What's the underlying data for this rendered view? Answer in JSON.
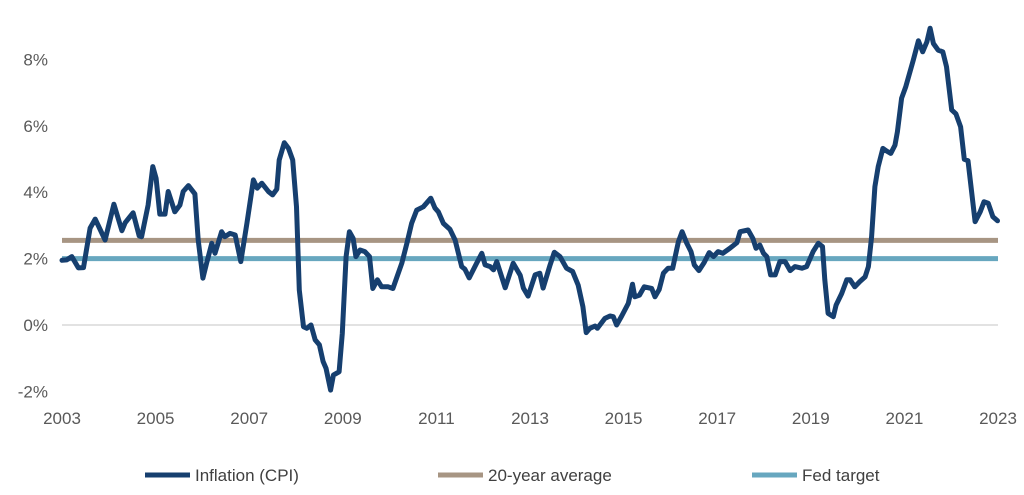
{
  "chart_data": {
    "type": "line",
    "title": "",
    "xlabel": "",
    "ylabel": "",
    "xlim": [
      2003,
      2023
    ],
    "ylim": [
      -2,
      9
    ],
    "x_ticks": [
      "2003",
      "2005",
      "2007",
      "2009",
      "2011",
      "2013",
      "2015",
      "2017",
      "2019",
      "2021",
      "2023"
    ],
    "y_ticks": [
      "-2%",
      "0%",
      "2%",
      "4%",
      "6%",
      "8%"
    ],
    "grid": "zero-line only",
    "legend_position": "bottom",
    "colors": {
      "cpi": "#163f6f",
      "average": "#a79583",
      "fed": "#67a7bf"
    },
    "series": [
      {
        "name": "Inflation (CPI)",
        "x": [
          2003.0,
          2003.1,
          2003.21,
          2003.35,
          2003.46,
          2003.6,
          2003.71,
          2003.92,
          2004.11,
          2004.28,
          2004.35,
          2004.52,
          2004.65,
          2004.7,
          2004.84,
          2004.94,
          2005.01,
          2005.09,
          2005.2,
          2005.27,
          2005.41,
          2005.52,
          2005.59,
          2005.7,
          2005.84,
          2005.91,
          2006.01,
          2006.09,
          2006.2,
          2006.27,
          2006.41,
          2006.48,
          2006.59,
          2006.7,
          2006.82,
          2006.95,
          2007.09,
          2007.17,
          2007.27,
          2007.41,
          2007.5,
          2007.59,
          2007.64,
          2007.75,
          2007.84,
          2007.93,
          2008.01,
          2008.07,
          2008.16,
          2008.23,
          2008.32,
          2008.41,
          2008.5,
          2008.58,
          2008.64,
          2008.74,
          2008.8,
          2008.92,
          2008.99,
          2009.07,
          2009.14,
          2009.22,
          2009.28,
          2009.37,
          2009.47,
          2009.57,
          2009.64,
          2009.74,
          2009.83,
          2009.97,
          2010.07,
          2010.26,
          2010.37,
          2010.47,
          2010.58,
          2010.72,
          2010.88,
          2010.97,
          2011.04,
          2011.15,
          2011.29,
          2011.4,
          2011.54,
          2011.61,
          2011.7,
          2011.86,
          2011.97,
          2012.04,
          2012.15,
          2012.22,
          2012.29,
          2012.47,
          2012.64,
          2012.79,
          2012.86,
          2012.96,
          2013.11,
          2013.21,
          2013.28,
          2013.43,
          2013.52,
          2013.64,
          2013.78,
          2013.91,
          2014.03,
          2014.13,
          2014.2,
          2014.28,
          2014.39,
          2014.44,
          2014.6,
          2014.71,
          2014.78,
          2014.85,
          2014.96,
          2015.1,
          2015.19,
          2015.24,
          2015.34,
          2015.44,
          2015.6,
          2015.67,
          2015.76,
          2015.85,
          2015.95,
          2016.05,
          2016.17,
          2016.25,
          2016.35,
          2016.44,
          2016.51,
          2016.61,
          2016.72,
          2016.83,
          2016.92,
          2017.02,
          2017.12,
          2017.27,
          2017.42,
          2017.49,
          2017.66,
          2017.76,
          2017.83,
          2017.91,
          2017.99,
          2018.06,
          2018.14,
          2018.24,
          2018.34,
          2018.45,
          2018.56,
          2018.66,
          2018.81,
          2018.91,
          2019.05,
          2019.16,
          2019.25,
          2019.3,
          2019.37,
          2019.48,
          2019.54,
          2019.66,
          2019.77,
          2019.84,
          2019.94,
          2020.05,
          2020.16,
          2020.23,
          2020.3,
          2020.37,
          2020.44,
          2020.54,
          2020.62,
          2020.71,
          2020.8,
          2020.85,
          2020.94,
          2021.03,
          2021.19,
          2021.3,
          2021.39,
          2021.48,
          2021.55,
          2021.62,
          2021.72,
          2021.82,
          2021.9,
          2022.01,
          2022.1,
          2022.2,
          2022.28,
          2022.36,
          2022.51,
          2022.62,
          2022.7,
          2022.79,
          2022.89,
          2022.99
        ],
        "y": [
          1.95,
          1.96,
          2.06,
          1.72,
          1.73,
          2.92,
          3.19,
          2.56,
          3.64,
          2.84,
          3.08,
          3.38,
          2.68,
          2.66,
          3.61,
          4.77,
          4.42,
          3.34,
          3.34,
          4.02,
          3.41,
          3.61,
          4.02,
          4.2,
          3.95,
          2.56,
          1.41,
          1.86,
          2.46,
          2.16,
          2.81,
          2.66,
          2.76,
          2.71,
          1.91,
          3.06,
          4.37,
          4.12,
          4.27,
          4.02,
          3.92,
          4.09,
          4.97,
          5.49,
          5.32,
          4.97,
          3.56,
          1.05,
          -0.05,
          -0.1,
          0.0,
          -0.45,
          -0.6,
          -1.1,
          -1.3,
          -1.96,
          -1.51,
          -1.41,
          -0.25,
          2.06,
          2.81,
          2.61,
          2.06,
          2.26,
          2.21,
          2.06,
          1.1,
          1.36,
          1.15,
          1.15,
          1.1,
          1.86,
          2.46,
          3.06,
          3.46,
          3.56,
          3.82,
          3.52,
          3.41,
          3.06,
          2.88,
          2.56,
          1.76,
          1.68,
          1.42,
          1.86,
          2.16,
          1.81,
          1.76,
          1.66,
          1.91,
          1.12,
          1.86,
          1.5,
          1.11,
          0.87,
          1.51,
          1.56,
          1.11,
          1.81,
          2.19,
          2.06,
          1.71,
          1.61,
          1.2,
          0.55,
          -0.23,
          -0.1,
          -0.03,
          -0.1,
          0.2,
          0.27,
          0.25,
          0.0,
          0.27,
          0.65,
          1.23,
          0.85,
          0.9,
          1.15,
          1.1,
          0.85,
          1.07,
          1.56,
          1.71,
          1.71,
          2.51,
          2.81,
          2.46,
          2.21,
          1.81,
          1.64,
          1.88,
          2.18,
          2.06,
          2.21,
          2.16,
          2.31,
          2.48,
          2.81,
          2.86,
          2.61,
          2.31,
          2.41,
          2.16,
          2.06,
          1.51,
          1.51,
          1.91,
          1.91,
          1.64,
          1.76,
          1.71,
          1.76,
          2.21,
          2.46,
          2.36,
          1.36,
          0.35,
          0.25,
          0.6,
          0.95,
          1.36,
          1.36,
          1.15,
          1.31,
          1.45,
          1.76,
          2.66,
          4.17,
          4.77,
          5.32,
          5.24,
          5.17,
          5.42,
          5.82,
          6.83,
          7.18,
          7.98,
          8.56,
          8.23,
          8.53,
          8.94,
          8.48,
          8.28,
          8.23,
          7.78,
          6.48,
          6.36,
          5.97,
          4.99,
          4.95,
          3.11,
          3.41,
          3.71,
          3.67,
          3.26,
          3.14
        ]
      },
      {
        "name": "20-year average",
        "value": 2.55
      },
      {
        "name": "Fed target",
        "value": 2.0
      }
    ]
  }
}
